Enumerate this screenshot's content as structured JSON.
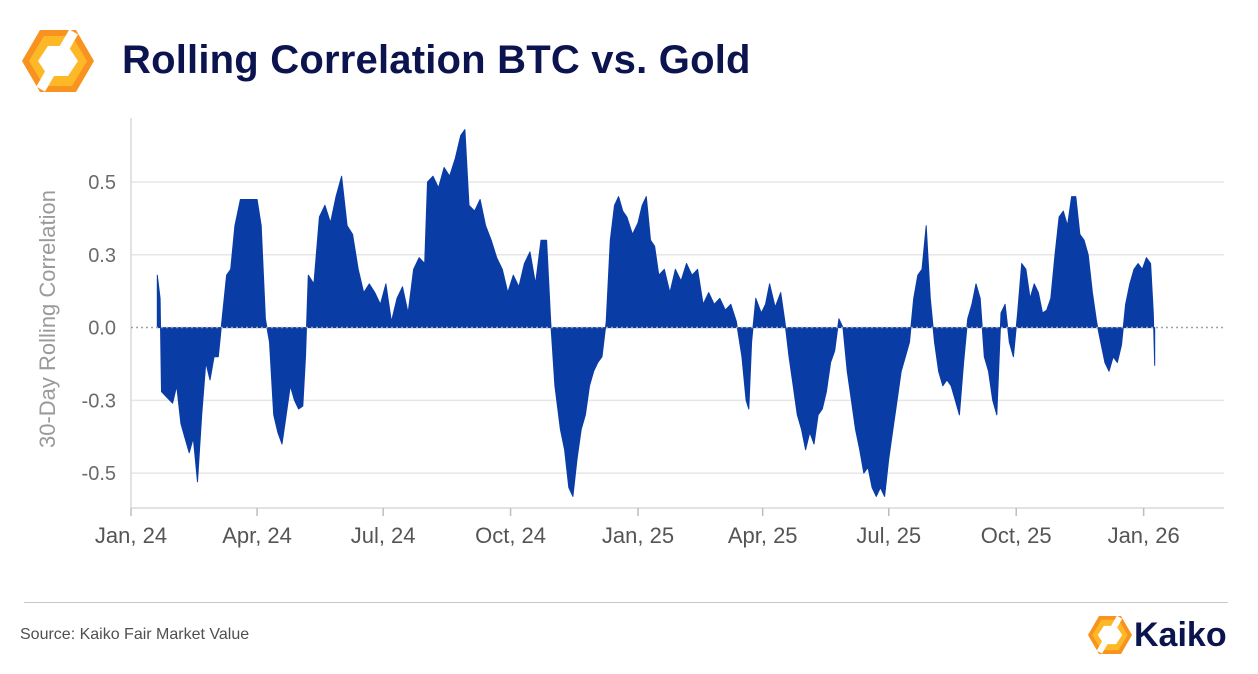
{
  "header": {
    "title": "Rolling Correlation BTC vs. Gold",
    "logo_icon": "kaiko-hexagon-logo-icon"
  },
  "footer": {
    "source": "Source: Kaiko Fair Market Value",
    "brand_name": "Kaiko",
    "brand_icon": "kaiko-hexagon-logo-icon"
  },
  "colors": {
    "title": "#0c1450",
    "area": "#0a3ca6",
    "zero_line": "#a0a0a0",
    "grid": "#e6e6e6",
    "logo_orange": "#f7931e",
    "logo_light": "#fdb827"
  },
  "chart_data": {
    "type": "area",
    "title": "",
    "xlabel": "",
    "ylabel": "30-Day Rolling Correlation",
    "ylim": [
      -0.62,
      0.72
    ],
    "grid": true,
    "legend": "none",
    "y_ticks": [
      -0.5,
      -0.25,
      0.0,
      0.25,
      0.5
    ],
    "y_tick_labels": [
      "-0.5",
      "-0.3",
      "0.0",
      "0.3",
      "0.5"
    ],
    "x_start": "2024-01-01",
    "x_end": "2026-02-28",
    "x_ticks": [
      {
        "date": "2024-01-01",
        "label": "Jan, 24"
      },
      {
        "date": "2024-04-01",
        "label": "Apr, 24"
      },
      {
        "date": "2024-07-01",
        "label": "Jul, 24"
      },
      {
        "date": "2024-10-01",
        "label": "Oct, 24"
      },
      {
        "date": "2025-01-01",
        "label": "Jan, 25"
      },
      {
        "date": "2025-04-01",
        "label": "Apr, 25"
      },
      {
        "date": "2025-07-01",
        "label": "Jul, 25"
      },
      {
        "date": "2025-10-01",
        "label": "Oct, 25"
      },
      {
        "date": "2026-01-01",
        "label": "Jan, 26"
      }
    ],
    "series": [
      {
        "name": "30-Day Rolling Correlation BTC vs. Gold",
        "points": [
          [
            "2024-01-20",
            0.18
          ],
          [
            "2024-01-22",
            0.1
          ],
          [
            "2024-01-23",
            -0.22
          ],
          [
            "2024-01-27",
            -0.24
          ],
          [
            "2024-01-31",
            -0.26
          ],
          [
            "2024-02-03",
            -0.2
          ],
          [
            "2024-02-06",
            -0.33
          ],
          [
            "2024-02-09",
            -0.38
          ],
          [
            "2024-02-12",
            -0.43
          ],
          [
            "2024-02-15",
            -0.38
          ],
          [
            "2024-02-18",
            -0.53
          ],
          [
            "2024-02-21",
            -0.3
          ],
          [
            "2024-02-24",
            -0.12
          ],
          [
            "2024-02-27",
            -0.18
          ],
          [
            "2024-03-01",
            -0.1
          ],
          [
            "2024-03-04",
            -0.1
          ],
          [
            "2024-03-07",
            0.04
          ],
          [
            "2024-03-10",
            0.18
          ],
          [
            "2024-03-13",
            0.2
          ],
          [
            "2024-03-16",
            0.35
          ],
          [
            "2024-03-20",
            0.44
          ],
          [
            "2024-03-24",
            0.44
          ],
          [
            "2024-03-28",
            0.44
          ],
          [
            "2024-04-01",
            0.44
          ],
          [
            "2024-04-04",
            0.35
          ],
          [
            "2024-04-07",
            0.03
          ],
          [
            "2024-04-10",
            -0.05
          ],
          [
            "2024-04-13",
            -0.3
          ],
          [
            "2024-04-16",
            -0.36
          ],
          [
            "2024-04-19",
            -0.4
          ],
          [
            "2024-04-22",
            -0.3
          ],
          [
            "2024-04-25",
            -0.2
          ],
          [
            "2024-04-28",
            -0.25
          ],
          [
            "2024-05-01",
            -0.28
          ],
          [
            "2024-05-04",
            -0.27
          ],
          [
            "2024-05-06",
            -0.1
          ],
          [
            "2024-05-08",
            0.18
          ],
          [
            "2024-05-12",
            0.15
          ],
          [
            "2024-05-16",
            0.38
          ],
          [
            "2024-05-20",
            0.42
          ],
          [
            "2024-05-24",
            0.36
          ],
          [
            "2024-05-28",
            0.45
          ],
          [
            "2024-06-01",
            0.52
          ],
          [
            "2024-06-05",
            0.35
          ],
          [
            "2024-06-09",
            0.32
          ],
          [
            "2024-06-13",
            0.2
          ],
          [
            "2024-06-17",
            0.12
          ],
          [
            "2024-06-21",
            0.15
          ],
          [
            "2024-06-25",
            0.12
          ],
          [
            "2024-06-29",
            0.08
          ],
          [
            "2024-07-03",
            0.15
          ],
          [
            "2024-07-07",
            0.02
          ],
          [
            "2024-07-11",
            0.1
          ],
          [
            "2024-07-15",
            0.14
          ],
          [
            "2024-07-19",
            0.05
          ],
          [
            "2024-07-23",
            0.2
          ],
          [
            "2024-07-27",
            0.24
          ],
          [
            "2024-07-31",
            0.22
          ],
          [
            "2024-08-02",
            0.5
          ],
          [
            "2024-08-06",
            0.52
          ],
          [
            "2024-08-10",
            0.48
          ],
          [
            "2024-08-14",
            0.55
          ],
          [
            "2024-08-18",
            0.52
          ],
          [
            "2024-08-22",
            0.58
          ],
          [
            "2024-08-26",
            0.66
          ],
          [
            "2024-08-29",
            0.68
          ],
          [
            "2024-09-01",
            0.42
          ],
          [
            "2024-09-05",
            0.4
          ],
          [
            "2024-09-09",
            0.44
          ],
          [
            "2024-09-13",
            0.35
          ],
          [
            "2024-09-17",
            0.3
          ],
          [
            "2024-09-21",
            0.24
          ],
          [
            "2024-09-25",
            0.2
          ],
          [
            "2024-09-29",
            0.12
          ],
          [
            "2024-10-03",
            0.18
          ],
          [
            "2024-10-07",
            0.14
          ],
          [
            "2024-10-11",
            0.22
          ],
          [
            "2024-10-15",
            0.26
          ],
          [
            "2024-10-19",
            0.15
          ],
          [
            "2024-10-23",
            0.3
          ],
          [
            "2024-10-27",
            0.3
          ],
          [
            "2024-10-30",
            0.02
          ],
          [
            "2024-11-02",
            -0.2
          ],
          [
            "2024-11-06",
            -0.35
          ],
          [
            "2024-11-09",
            -0.42
          ],
          [
            "2024-11-12",
            -0.55
          ],
          [
            "2024-11-15",
            -0.58
          ],
          [
            "2024-11-18",
            -0.45
          ],
          [
            "2024-11-21",
            -0.35
          ],
          [
            "2024-11-24",
            -0.3
          ],
          [
            "2024-11-27",
            -0.2
          ],
          [
            "2024-11-30",
            -0.15
          ],
          [
            "2024-12-03",
            -0.12
          ],
          [
            "2024-12-06",
            -0.1
          ],
          [
            "2024-12-09",
            0.02
          ],
          [
            "2024-12-12",
            0.3
          ],
          [
            "2024-12-15",
            0.42
          ],
          [
            "2024-12-18",
            0.45
          ],
          [
            "2024-12-21",
            0.4
          ],
          [
            "2024-12-24",
            0.38
          ],
          [
            "2024-12-28",
            0.32
          ],
          [
            "2025-01-01",
            0.36
          ],
          [
            "2025-01-04",
            0.42
          ],
          [
            "2025-01-07",
            0.45
          ],
          [
            "2025-01-10",
            0.3
          ],
          [
            "2025-01-13",
            0.28
          ],
          [
            "2025-01-16",
            0.18
          ],
          [
            "2025-01-20",
            0.2
          ],
          [
            "2025-01-24",
            0.12
          ],
          [
            "2025-01-28",
            0.2
          ],
          [
            "2025-02-01",
            0.16
          ],
          [
            "2025-02-05",
            0.22
          ],
          [
            "2025-02-09",
            0.18
          ],
          [
            "2025-02-13",
            0.2
          ],
          [
            "2025-02-17",
            0.08
          ],
          [
            "2025-02-21",
            0.12
          ],
          [
            "2025-02-25",
            0.08
          ],
          [
            "2025-03-01",
            0.1
          ],
          [
            "2025-03-05",
            0.06
          ],
          [
            "2025-03-09",
            0.08
          ],
          [
            "2025-03-13",
            0.02
          ],
          [
            "2025-03-17",
            -0.1
          ],
          [
            "2025-03-20",
            -0.25
          ],
          [
            "2025-03-22",
            -0.28
          ],
          [
            "2025-03-24",
            -0.05
          ],
          [
            "2025-03-27",
            0.1
          ],
          [
            "2025-03-31",
            0.05
          ],
          [
            "2025-04-03",
            0.08
          ],
          [
            "2025-04-06",
            0.15
          ],
          [
            "2025-04-10",
            0.07
          ],
          [
            "2025-04-14",
            0.12
          ],
          [
            "2025-04-17",
            0.02
          ],
          [
            "2025-04-20",
            -0.1
          ],
          [
            "2025-04-23",
            -0.2
          ],
          [
            "2025-04-26",
            -0.3
          ],
          [
            "2025-04-29",
            -0.35
          ],
          [
            "2025-05-02",
            -0.42
          ],
          [
            "2025-05-05",
            -0.36
          ],
          [
            "2025-05-08",
            -0.4
          ],
          [
            "2025-05-11",
            -0.3
          ],
          [
            "2025-05-14",
            -0.28
          ],
          [
            "2025-05-17",
            -0.22
          ],
          [
            "2025-05-20",
            -0.12
          ],
          [
            "2025-05-23",
            -0.08
          ],
          [
            "2025-05-26",
            0.03
          ],
          [
            "2025-05-29",
            0.0
          ],
          [
            "2025-06-01",
            -0.15
          ],
          [
            "2025-06-04",
            -0.25
          ],
          [
            "2025-06-07",
            -0.35
          ],
          [
            "2025-06-10",
            -0.42
          ],
          [
            "2025-06-13",
            -0.5
          ],
          [
            "2025-06-16",
            -0.48
          ],
          [
            "2025-06-19",
            -0.55
          ],
          [
            "2025-06-22",
            -0.58
          ],
          [
            "2025-06-25",
            -0.55
          ],
          [
            "2025-06-28",
            -0.58
          ],
          [
            "2025-07-01",
            -0.45
          ],
          [
            "2025-07-04",
            -0.35
          ],
          [
            "2025-07-07",
            -0.25
          ],
          [
            "2025-07-10",
            -0.15
          ],
          [
            "2025-07-13",
            -0.1
          ],
          [
            "2025-07-16",
            -0.05
          ],
          [
            "2025-07-19",
            0.1
          ],
          [
            "2025-07-22",
            0.18
          ],
          [
            "2025-07-25",
            0.2
          ],
          [
            "2025-07-28",
            0.35
          ],
          [
            "2025-07-31",
            0.1
          ],
          [
            "2025-08-03",
            -0.05
          ],
          [
            "2025-08-06",
            -0.15
          ],
          [
            "2025-08-09",
            -0.2
          ],
          [
            "2025-08-12",
            -0.18
          ],
          [
            "2025-08-15",
            -0.2
          ],
          [
            "2025-08-18",
            -0.25
          ],
          [
            "2025-08-21",
            -0.3
          ],
          [
            "2025-08-24",
            -0.12
          ],
          [
            "2025-08-27",
            0.03
          ],
          [
            "2025-08-30",
            0.08
          ],
          [
            "2025-09-02",
            0.15
          ],
          [
            "2025-09-05",
            0.1
          ],
          [
            "2025-09-08",
            -0.1
          ],
          [
            "2025-09-11",
            -0.15
          ],
          [
            "2025-09-14",
            -0.25
          ],
          [
            "2025-09-17",
            -0.3
          ],
          [
            "2025-09-20",
            0.05
          ],
          [
            "2025-09-23",
            0.08
          ],
          [
            "2025-09-26",
            -0.05
          ],
          [
            "2025-09-29",
            -0.1
          ],
          [
            "2025-10-02",
            0.05
          ],
          [
            "2025-10-05",
            0.22
          ],
          [
            "2025-10-08",
            0.2
          ],
          [
            "2025-10-11",
            0.1
          ],
          [
            "2025-10-14",
            0.15
          ],
          [
            "2025-10-17",
            0.12
          ],
          [
            "2025-10-20",
            0.05
          ],
          [
            "2025-10-23",
            0.06
          ],
          [
            "2025-10-26",
            0.1
          ],
          [
            "2025-10-29",
            0.25
          ],
          [
            "2025-11-01",
            0.38
          ],
          [
            "2025-11-04",
            0.4
          ],
          [
            "2025-11-07",
            0.35
          ],
          [
            "2025-11-10",
            0.45
          ],
          [
            "2025-11-13",
            0.45
          ],
          [
            "2025-11-16",
            0.32
          ],
          [
            "2025-11-19",
            0.3
          ],
          [
            "2025-11-22",
            0.25
          ],
          [
            "2025-11-25",
            0.12
          ],
          [
            "2025-11-28",
            0.02
          ],
          [
            "2025-12-01",
            -0.05
          ],
          [
            "2025-12-04",
            -0.12
          ],
          [
            "2025-12-07",
            -0.15
          ],
          [
            "2025-12-10",
            -0.1
          ],
          [
            "2025-12-13",
            -0.12
          ],
          [
            "2025-12-16",
            -0.06
          ],
          [
            "2025-12-19",
            0.08
          ],
          [
            "2025-12-22",
            0.15
          ],
          [
            "2025-12-25",
            0.2
          ],
          [
            "2025-12-28",
            0.22
          ],
          [
            "2025-12-31",
            0.2
          ],
          [
            "2026-01-03",
            0.24
          ],
          [
            "2026-01-06",
            0.22
          ],
          [
            "2026-01-08",
            0.05
          ],
          [
            "2026-01-09",
            -0.13
          ]
        ]
      }
    ]
  }
}
